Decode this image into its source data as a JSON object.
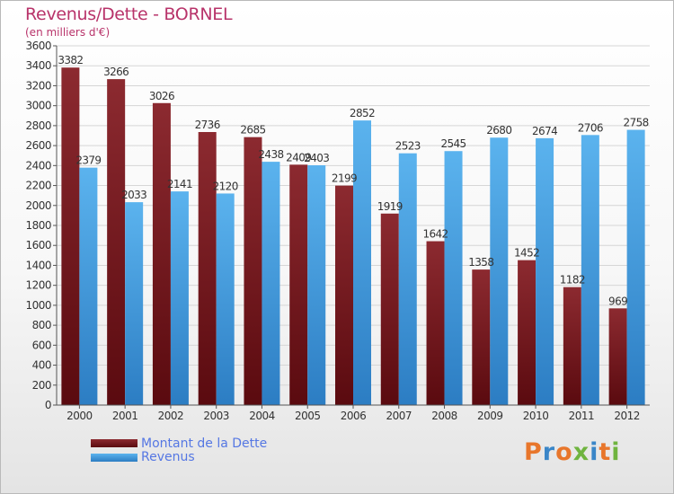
{
  "chart_data": {
    "type": "bar",
    "title": "Revenus/Dette - BORNEL",
    "subtitle": "(en milliers d'€)",
    "categories": [
      "2000",
      "2001",
      "2002",
      "2003",
      "2004",
      "2005",
      "2006",
      "2007",
      "2008",
      "2009",
      "2010",
      "2011",
      "2012"
    ],
    "series": [
      {
        "name": "Montant de la Dette",
        "color": "#7a1f24",
        "values": [
          3382,
          3266,
          3026,
          2736,
          2685,
          2409,
          2199,
          1919,
          1642,
          1358,
          1452,
          1182,
          969
        ],
        "labels": [
          "3382",
          "3266",
          "3026",
          "2736",
          "2685",
          "2409",
          "2199",
          "1919",
          "1642",
          "1358",
          "1452",
          "1182",
          "969"
        ]
      },
      {
        "name": "Revenus",
        "color": "#3e9ee0",
        "values": [
          2379,
          2033,
          2141,
          2120,
          2438,
          2403,
          2852,
          2523,
          2545,
          2680,
          2674,
          2706,
          2758
        ],
        "labels": [
          "2379",
          "2033",
          "2141",
          "2120",
          "2438",
          "2403",
          "2852",
          "2523",
          "2545",
          "2680",
          "2674",
          "2706",
          "2758"
        ]
      }
    ],
    "ylim": [
      0,
      3600
    ],
    "yticks": [
      "0",
      "200",
      "400",
      "600",
      "800",
      "1000",
      "1200",
      "1400",
      "1600",
      "1800",
      "2000",
      "2200",
      "2400",
      "2600",
      "2800",
      "3000",
      "3200",
      "3400",
      "3600"
    ],
    "grid": true,
    "legend_position": "bottom-left"
  },
  "legend": {
    "dette_label": "Montant de la Dette",
    "revenus_label": "Revenus"
  },
  "brand": {
    "letters": [
      "P",
      "r",
      "o",
      "x",
      "i",
      "t",
      "i"
    ],
    "colors": [
      "#e8762b",
      "#3a86c8",
      "#e8762b",
      "#6fb43f",
      "#3a86c8",
      "#e8762b",
      "#6fb43f"
    ]
  }
}
